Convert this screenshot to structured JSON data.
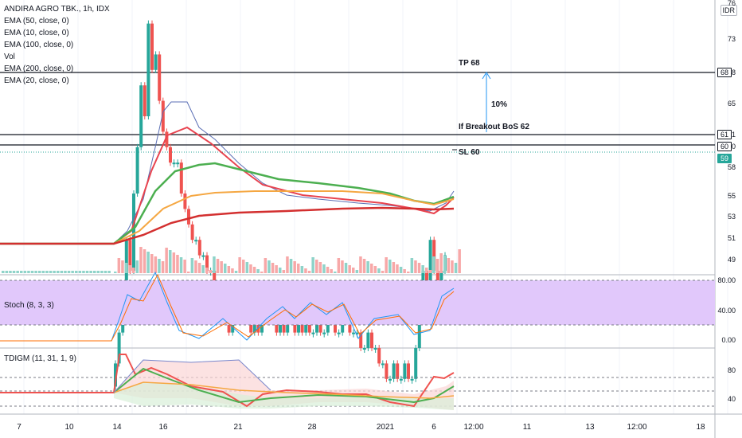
{
  "legend": {
    "title": "ANDIRA AGRO TBK., 1h, IDX",
    "lines": [
      "EMA (50, close, 0)",
      "EMA (10, close, 0)",
      "EMA (100, close, 0)",
      "Vol",
      "EMA (200, close, 0)",
      "EMA (20, close, 0)"
    ]
  },
  "currency": "IDR",
  "stoch_label": "Stoch (8, 3, 3)",
  "tdigm_label": "TDIGM (11, 31, 1, 9)",
  "annotations": {
    "tp": "TP 68",
    "pct": "10%",
    "breakout": "If Breakout BoS 62",
    "sl": "SL 60"
  },
  "price_axis": [
    "76",
    "73",
    "68",
    "65",
    "61",
    "60",
    "58",
    "55",
    "53",
    "51",
    "49"
  ],
  "price_tags": [
    {
      "label": "68",
      "value": 68,
      "bg": "#ffffff",
      "fg": "#131722",
      "border": "#131722"
    },
    {
      "label": "61",
      "value": 61.2,
      "bg": "#ffffff",
      "fg": "#131722",
      "border": "#131722"
    },
    {
      "label": "60",
      "value": 60.1,
      "bg": "#ffffff",
      "fg": "#131722",
      "border": "#131722"
    },
    {
      "label": "59",
      "value": 59.1,
      "bg": "#26a69a",
      "fg": "#ffffff",
      "border": "#26a69a"
    }
  ],
  "stoch_axis": [
    "80.00",
    "40.00",
    "0.00"
  ],
  "tdigm_axis": [
    "80",
    "40"
  ],
  "time_axis": [
    "7",
    "10",
    "14",
    "16",
    "21",
    "28",
    "2021",
    "6",
    "12:00",
    "11",
    "13",
    "12:00",
    "18"
  ],
  "colors": {
    "up": "#26a69a",
    "down": "#ef5350",
    "ema10": "#5b6fb5",
    "ema20": "#e8434f",
    "ema50": "#4caf50",
    "ema100": "#f5a742",
    "ema200": "#d32f2f",
    "stoch_fill": "#e1c8fb",
    "stoch_k": "#2196f3",
    "stoch_d": "#ff6d00"
  }
}
